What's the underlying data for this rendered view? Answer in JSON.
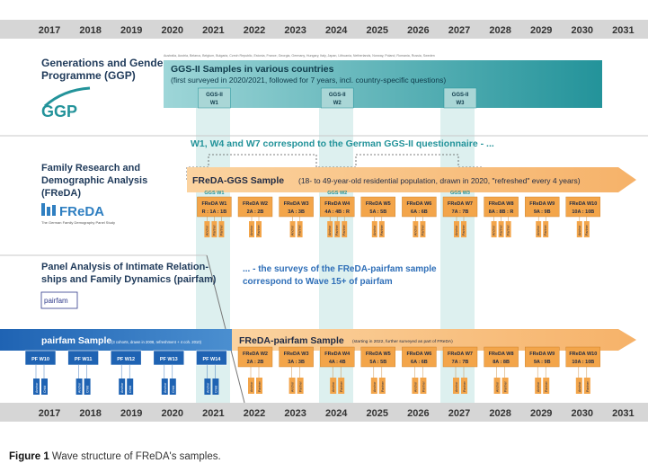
{
  "years": [
    "2017",
    "2018",
    "2019",
    "2020",
    "2021",
    "2022",
    "2023",
    "2024",
    "2025",
    "2026",
    "2027",
    "2028",
    "2029",
    "2030",
    "2031"
  ],
  "ggp": {
    "title_line1": "Generations and Gender",
    "title_line2": "Programme (GGP)",
    "logo": "GGP",
    "countries": "Australia, Austria, Belarus, Belgium, Bulgaria, Czech Republic, Estonia, France, Georgia, Germany, Hungary, Italy, Japan, Lithuania, Netherlands, Norway, Poland, Romania, Russia, Sweden",
    "bar_title": "GGS-II Samples in various countries",
    "bar_subtitle": "(first surveyed in 2020/2021, followed for 7 years, incl. country-specific questions)",
    "waves": [
      {
        "line1": "GGS-II",
        "line2": "W1",
        "year": "2021"
      },
      {
        "line1": "GGS-II",
        "line2": "W2",
        "year": "2024"
      },
      {
        "line1": "GGS-II",
        "line2": "W3",
        "year": "2027"
      }
    ],
    "note": "W1, W4 and W7 correspond to the German GGS-II questionnaire - ..."
  },
  "freda": {
    "title_line1": "Family Research and",
    "title_line2": "Demographic Analysis",
    "title_line3": "(FReDA)",
    "logo": "FReDA",
    "logo_sub": "The German Family Demography Panel Study",
    "bar_title": "FReDA-GGS Sample",
    "bar_subtitle": "(18- to 49-year-old residential population, drawn in 2020, \"refreshed\" every 4 years)",
    "waves": [
      {
        "label": "FReDA W1",
        "ggs": "GGS W1",
        "parts": [
          "R",
          "1A",
          "1B"
        ]
      },
      {
        "label": "FReDA W2",
        "ggs": "",
        "parts": [
          "2A",
          "2B"
        ]
      },
      {
        "label": "FReDA W3",
        "ggs": "",
        "parts": [
          "3A",
          "3B"
        ]
      },
      {
        "label": "FReDA W4",
        "ggs": "GGS W2",
        "parts": [
          "4A",
          "4B",
          "R"
        ]
      },
      {
        "label": "FReDA W5",
        "ggs": "",
        "parts": [
          "5A",
          "5B"
        ]
      },
      {
        "label": "FReDA W6",
        "ggs": "",
        "parts": [
          "6A",
          "6B"
        ]
      },
      {
        "label": "FReDA W7",
        "ggs": "GGS W3",
        "parts": [
          "7A",
          "7B"
        ]
      },
      {
        "label": "FReDA W8",
        "ggs": "",
        "parts": [
          "8A",
          "8B",
          "R"
        ]
      },
      {
        "label": "FReDA W9",
        "ggs": "",
        "parts": [
          "9A",
          "9B"
        ]
      },
      {
        "label": "FReDA W10",
        "ggs": "",
        "parts": [
          "10A",
          "10B"
        ]
      }
    ]
  },
  "pairfam": {
    "title_line1": "Panel Analysis of Intimate Relation-",
    "title_line2": "ships and Family Dynamics (pairfam)",
    "logo": "pairfam",
    "note_line1": "... - the surveys of the FReDA-pairfam sample",
    "note_line2": "correspond to Wave 15+ of pairfam",
    "bar_title": "pairfam Sample",
    "bar_subtitle": "(3 cohorts, drawn in 2008, refreshment + 4 coh. 2010)",
    "pf_waves": [
      "PF W10",
      "PF W11",
      "PF W12",
      "PF W13",
      "PF W14"
    ],
    "freda_bar_title": "FReDA-pairfam Sample",
    "freda_bar_subtitle": "(starting in 2022, further surveyed as part of FReDA)",
    "freda_waves": [
      {
        "label": "FReDA W2",
        "parts": "2A : 2B"
      },
      {
        "label": "FReDA W3",
        "parts": "3A : 3B"
      },
      {
        "label": "FReDA W4",
        "parts": "4A : 4B"
      },
      {
        "label": "FReDA W5",
        "parts": "5A : 5B"
      },
      {
        "label": "FReDA W6",
        "parts": "6A : 6B"
      },
      {
        "label": "FReDA W7",
        "parts": "7A : 7B"
      },
      {
        "label": "FReDA W8",
        "parts": "8A : 8B"
      },
      {
        "label": "FReDA W9",
        "parts": "9A : 9B"
      },
      {
        "label": "FReDA W10",
        "parts": "10A : 10B"
      }
    ],
    "anchor_label": "Anchor",
    "child_label": "Child",
    "partner_label": "Partner",
    "parents_label": "Parents"
  },
  "caption": {
    "bold": "Figure 1",
    "text": " Wave structure of FReDA's samples."
  },
  "colors": {
    "orange": "#f6b269",
    "orange_box": "#f0a040",
    "teal": "#2e9aa0",
    "light_teal": "#bfe3e2",
    "blue": "#1f6fb8",
    "light_blue": "#cfe1f2",
    "year_bar": "#d6d6d6"
  }
}
